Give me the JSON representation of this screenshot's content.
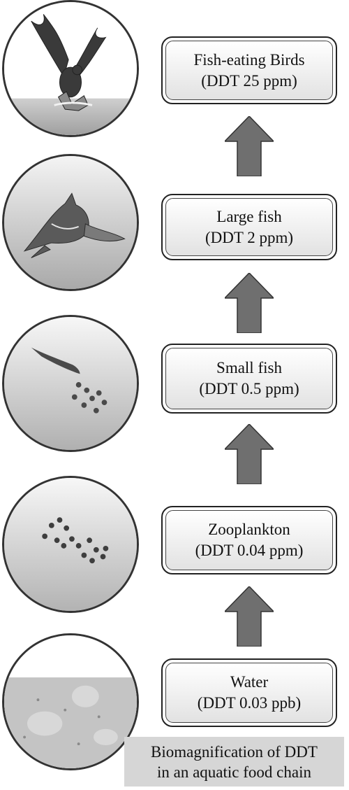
{
  "levels": [
    {
      "name": "Fish-eating Birds",
      "ddt": "(DDT 25 ppm)"
    },
    {
      "name": "Large fish",
      "ddt": "(DDT 2 ppm)"
    },
    {
      "name": "Small fish",
      "ddt": "(DDT 0.5 ppm)"
    },
    {
      "name": "Zooplankton",
      "ddt": "(DDT 0.04 ppm)"
    },
    {
      "name": "Water",
      "ddt": "(DDT 0.03 ppb)"
    }
  ],
  "caption": {
    "line1": "Biomagnification of DDT",
    "line2": "in an aquatic food chain"
  },
  "colors": {
    "arrow": "#6f6f6f",
    "box_gradient_end": "#e2e2e2",
    "caption_bg": "#d6d6d6",
    "water": "#c4c4c4"
  },
  "icons": [
    "osprey-icon",
    "shark-icon",
    "small-fish-icon",
    "zooplankton-icon",
    "water-icon"
  ]
}
